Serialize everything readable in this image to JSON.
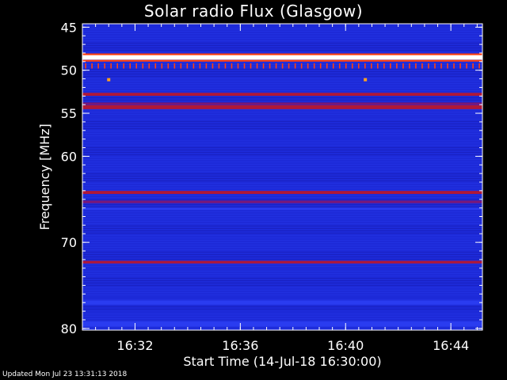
{
  "page": {
    "title": "Solar radio Flux (Glasgow)",
    "footer": "Updated Mon Jul 23 13:31:13 2018"
  },
  "chart_data": {
    "type": "heatmap",
    "title": "Solar radio Flux (Glasgow)",
    "xlabel": "Start Time (14-Jul-18 16:30:00)",
    "ylabel": "Frequency [MHz]",
    "x_unit": "minutes after 16:30:00",
    "xlim": [
      0,
      15.2
    ],
    "ylim": [
      44.6,
      80.2
    ],
    "y_inverted": true,
    "x_ticks": [
      {
        "value": 2,
        "label": "16:32"
      },
      {
        "value": 6,
        "label": "16:36"
      },
      {
        "value": 10,
        "label": "16:40"
      },
      {
        "value": 14,
        "label": "16:44"
      }
    ],
    "y_ticks": [
      {
        "value": 45,
        "label": "45"
      },
      {
        "value": 50,
        "label": "50"
      },
      {
        "value": 55,
        "label": "55"
      },
      {
        "value": 60,
        "label": "60"
      },
      {
        "value": 70,
        "label": "70"
      },
      {
        "value": 80,
        "label": "80"
      }
    ],
    "colormap": [
      "#14109e",
      "#1d2ad8",
      "#2a3cf0",
      "#7a1878",
      "#b01838",
      "#ff4010",
      "#ffa020",
      "#ffffff"
    ],
    "background_color": "#1d2ad8",
    "intensity_levels": "0 = dark blue, 1 = white",
    "bands": [
      {
        "freq": 45.0,
        "width": 0.35,
        "level": 0.15
      },
      {
        "freq": 48.5,
        "width": 0.55,
        "level": 0.97
      },
      {
        "freq": 48.15,
        "width": 0.2,
        "level": 0.7
      },
      {
        "freq": 48.9,
        "width": 0.2,
        "level": 0.7
      },
      {
        "freq": 52.8,
        "width": 0.35,
        "level": 0.5
      },
      {
        "freq": 53.9,
        "width": 0.3,
        "level": 0.45
      },
      {
        "freq": 54.3,
        "width": 0.45,
        "level": 0.55
      },
      {
        "freq": 55.3,
        "width": 0.25,
        "level": 0.15
      },
      {
        "freq": 58.0,
        "width": 0.3,
        "level": 0.18
      },
      {
        "freq": 64.2,
        "width": 0.35,
        "level": 0.5
      },
      {
        "freq": 65.3,
        "width": 0.3,
        "level": 0.4
      },
      {
        "freq": 66.1,
        "width": 0.25,
        "level": 0.32
      },
      {
        "freq": 72.3,
        "width": 0.3,
        "level": 0.5
      },
      {
        "freq": 73.0,
        "width": 0.2,
        "level": 0.12
      },
      {
        "freq": 76.3,
        "width": 0.25,
        "level": 0.12
      },
      {
        "freq": 77.0,
        "width": 0.5,
        "level": 0.28
      },
      {
        "freq": 78.0,
        "width": 0.3,
        "level": 0.15
      },
      {
        "freq": 79.5,
        "width": 0.6,
        "level": 0.22
      }
    ],
    "periodic_spikes": {
      "freq_start": 49.2,
      "freq_end": 49.8,
      "count": 63,
      "level": 0.75
    },
    "hot_spots": [
      {
        "time": 1.0,
        "freq": 51.1,
        "level": 0.8
      },
      {
        "time": 10.75,
        "freq": 51.1,
        "level": 0.8
      }
    ]
  }
}
